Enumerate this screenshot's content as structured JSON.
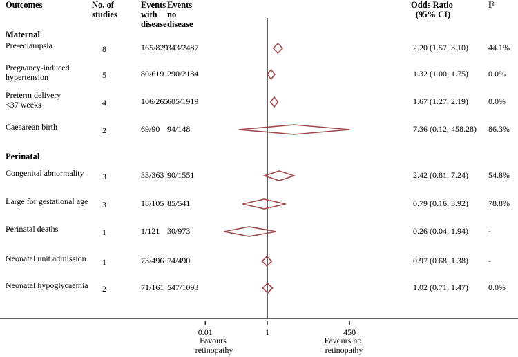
{
  "colors": {
    "diamond": "#a0464b",
    "axis": "#000000",
    "text": "#000000"
  },
  "headers": {
    "outcomes": "Outcomes",
    "studies": [
      "No. of",
      "studies"
    ],
    "ewd": [
      "Events",
      "with",
      "disease"
    ],
    "end": [
      "Events",
      "no",
      "disease"
    ],
    "or": [
      "Odds Ratio",
      "(95% CI)"
    ],
    "i2": "I²"
  },
  "sections": {
    "maternal": "Maternal",
    "perinatal": "Perinatal"
  },
  "chart_data": {
    "type": "forest",
    "scale": "log",
    "reference_line": 1,
    "xaxis": {
      "ticks": [
        0.01,
        1,
        450
      ],
      "tick_labels": [
        "0.01",
        "1",
        "450"
      ]
    },
    "annotations": {
      "left": [
        "Favours",
        "retinopathy"
      ],
      "right": [
        "Favours no",
        "retinopathy"
      ]
    },
    "rows": [
      {
        "section": "Maternal",
        "label": [
          "Pre-eclampsia"
        ],
        "studies": "8",
        "ewd": "165/829",
        "end": "343/2487",
        "or": 2.2,
        "lo": 1.57,
        "hi": 3.1,
        "or_text": "2.20 (1.57, 3.10)",
        "i2": "44.1%"
      },
      {
        "section": "Maternal",
        "label": [
          "Pregnancy-induced",
          "hypertension"
        ],
        "studies": "5",
        "ewd": "80/619",
        "end": "290/2184",
        "or": 1.32,
        "lo": 1.0,
        "hi": 1.75,
        "or_text": "1.32 (1.00, 1.75)",
        "i2": "0.0%"
      },
      {
        "section": "Maternal",
        "label": [
          "Preterm delivery",
          "<37 weeks"
        ],
        "studies": "4",
        "ewd": "106/265",
        "end": "605/1919",
        "or": 1.67,
        "lo": 1.27,
        "hi": 2.19,
        "or_text": "1.67 (1.27, 2.19)",
        "i2": "0.0%"
      },
      {
        "section": "Maternal",
        "label": [
          "Caesarean birth"
        ],
        "studies": "2",
        "ewd": "69/90",
        "end": "94/148",
        "or": 7.36,
        "lo": 0.12,
        "hi": 458.28,
        "or_text": "7.36 (0.12, 458.28)",
        "i2": "86.3%"
      },
      {
        "section": "Perinatal",
        "label": [
          "Congenital abnormality"
        ],
        "studies": "3",
        "ewd": "33/363",
        "end": "90/1551",
        "or": 2.42,
        "lo": 0.81,
        "hi": 7.24,
        "or_text": "2.42 (0.81, 7.24)",
        "i2": "54.8%"
      },
      {
        "section": "Perinatal",
        "label": [
          "Large for gestational age"
        ],
        "studies": "3",
        "ewd": "18/105",
        "end": "85/541",
        "or": 0.79,
        "lo": 0.16,
        "hi": 3.92,
        "or_text": "0.79 (0.16, 3.92)",
        "i2": "78.8%"
      },
      {
        "section": "Perinatal",
        "label": [
          "Perinatal deaths"
        ],
        "studies": "1",
        "ewd": "1/121",
        "end": "30/973",
        "or": 0.26,
        "lo": 0.04,
        "hi": 1.94,
        "or_text": "0.26 (0.04, 1.94)",
        "i2": "-"
      },
      {
        "section": "Perinatal",
        "label": [
          "Neonatal unit admission"
        ],
        "studies": "1",
        "ewd": "73/496",
        "end": "74/490",
        "or": 0.97,
        "lo": 0.68,
        "hi": 1.38,
        "or_text": "0.97 (0.68, 1.38)",
        "i2": "-"
      },
      {
        "section": "Perinatal",
        "label": [
          "Neonatal hypoglycaemia"
        ],
        "studies": "2",
        "ewd": "71/161",
        "end": "547/1093",
        "or": 1.02,
        "lo": 0.71,
        "hi": 1.47,
        "or_text": "1.02 (0.71, 1.47)",
        "i2": "0.0%"
      }
    ]
  }
}
